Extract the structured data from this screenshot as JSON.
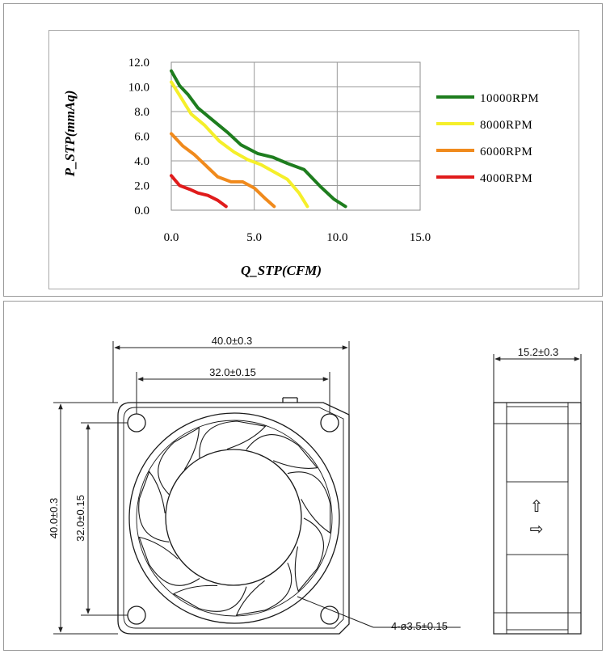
{
  "chart_data": {
    "type": "line",
    "xlabel": "Q_STP(CFM)",
    "ylabel": "P_STP(mmAq)",
    "xlim": [
      0,
      15
    ],
    "ylim": [
      0,
      12
    ],
    "x_ticks": [
      "0.0",
      "5.0",
      "10.0",
      "15.0"
    ],
    "y_ticks": [
      "0.0",
      "2.0",
      "4.0",
      "6.0",
      "8.0",
      "10.0",
      "12.0"
    ],
    "grid": true,
    "legend_position": "right",
    "series": [
      {
        "name": "10000RPM",
        "color": "#1e7d1e",
        "points": [
          [
            0,
            11.3
          ],
          [
            0.5,
            10.1
          ],
          [
            1.0,
            9.4
          ],
          [
            1.6,
            8.3
          ],
          [
            2.5,
            7.3
          ],
          [
            3.4,
            6.3
          ],
          [
            4.2,
            5.3
          ],
          [
            5.2,
            4.6
          ],
          [
            6.1,
            4.3
          ],
          [
            7.0,
            3.8
          ],
          [
            8.0,
            3.3
          ],
          [
            9.0,
            1.9
          ],
          [
            9.8,
            0.9
          ],
          [
            10.5,
            0.3
          ]
        ]
      },
      {
        "name": "8000RPM",
        "color": "#f5ef2a",
        "points": [
          [
            0,
            10.4
          ],
          [
            0.6,
            9.1
          ],
          [
            1.2,
            7.8
          ],
          [
            2.0,
            6.9
          ],
          [
            2.9,
            5.6
          ],
          [
            3.8,
            4.7
          ],
          [
            4.6,
            4.1
          ],
          [
            5.4,
            3.7
          ],
          [
            6.2,
            3.1
          ],
          [
            7.0,
            2.5
          ],
          [
            7.7,
            1.4
          ],
          [
            8.2,
            0.3
          ]
        ]
      },
      {
        "name": "6000RPM",
        "color": "#f08a1c",
        "points": [
          [
            0,
            6.2
          ],
          [
            0.7,
            5.2
          ],
          [
            1.4,
            4.5
          ],
          [
            2.1,
            3.6
          ],
          [
            2.8,
            2.7
          ],
          [
            3.6,
            2.3
          ],
          [
            4.3,
            2.3
          ],
          [
            5.0,
            1.8
          ],
          [
            5.7,
            0.9
          ],
          [
            6.2,
            0.3
          ]
        ]
      },
      {
        "name": "4000RPM",
        "color": "#e01b1b",
        "points": [
          [
            0,
            2.8
          ],
          [
            0.5,
            2.0
          ],
          [
            1.1,
            1.7
          ],
          [
            1.6,
            1.4
          ],
          [
            2.2,
            1.2
          ],
          [
            2.8,
            0.8
          ],
          [
            3.3,
            0.3
          ]
        ]
      }
    ]
  },
  "drawing": {
    "front_width": "40.0±0.3",
    "hole_spacing_horizontal": "32.0±0.15",
    "front_height": "40.0±0.3",
    "hole_spacing_vertical": "32.0±0.15",
    "hole_callout": "4-ø3.5±0.15",
    "side_thickness": "15.2±0.3",
    "airflow_arrow": "⇧",
    "rotation_arrow": "⇨"
  }
}
